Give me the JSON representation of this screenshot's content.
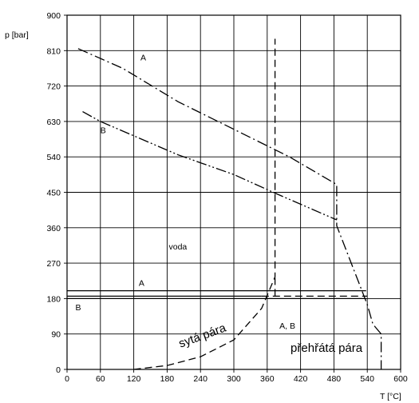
{
  "chart_data": {
    "type": "line",
    "xlabel": "T [°C]",
    "ylabel": "p [bar]",
    "xlim": [
      0,
      600
    ],
    "ylim": [
      0,
      900
    ],
    "xticks": [
      0,
      60,
      120,
      180,
      240,
      300,
      360,
      420,
      480,
      540,
      600
    ],
    "yticks": [
      0,
      90,
      180,
      270,
      360,
      450,
      540,
      630,
      720,
      810,
      900
    ],
    "grid": true,
    "series": [
      {
        "name": "A",
        "style": "dash-dot",
        "points": [
          [
            20,
            815
          ],
          [
            100,
            765
          ],
          [
            200,
            680
          ],
          [
            300,
            610
          ],
          [
            400,
            540
          ],
          [
            485,
            470
          ],
          [
            485,
            365
          ],
          [
            540,
            165
          ],
          [
            550,
            115
          ],
          [
            565,
            90
          ],
          [
            565,
            0
          ]
        ]
      },
      {
        "name": "B",
        "style": "dash-dot-dot",
        "points": [
          [
            28,
            655
          ],
          [
            60,
            630
          ],
          [
            200,
            545
          ],
          [
            300,
            495
          ],
          [
            374,
            448
          ],
          [
            485,
            380
          ]
        ]
      },
      {
        "style": "dashed",
        "points": [
          [
            120,
            0
          ],
          [
            180,
            10
          ],
          [
            240,
            32
          ],
          [
            300,
            75
          ],
          [
            350,
            155
          ],
          [
            374,
            235
          ],
          [
            374,
            840
          ]
        ]
      },
      {
        "name": "A",
        "style": "solid",
        "points": [
          [
            0,
            200
          ],
          [
            538,
            200
          ]
        ]
      },
      {
        "name": "B",
        "style": "solid",
        "points": [
          [
            0,
            180
          ],
          [
            538,
            180
          ]
        ]
      },
      {
        "name": "A",
        "style": "solid",
        "points": [
          [
            0,
            186
          ],
          [
            350,
            186
          ]
        ]
      },
      {
        "style": "dashed",
        "points": [
          [
            350,
            186
          ],
          [
            540,
            186
          ]
        ]
      },
      {
        "style": "dashed",
        "points": [
          [
            374,
            186
          ],
          [
            374,
            235
          ]
        ]
      }
    ],
    "annotations": [
      {
        "text": "A",
        "x": 132,
        "y": 785
      },
      {
        "text": "B",
        "x": 60,
        "y": 600
      },
      {
        "text": "A",
        "x": 129,
        "y": 212
      },
      {
        "text": "B",
        "x": 15,
        "y": 150
      },
      {
        "text": "A, B",
        "x": 382,
        "y": 104
      },
      {
        "text": "voda",
        "x": 183,
        "y": 305
      },
      {
        "text": "sytá pára",
        "x": 204,
        "y": 55,
        "rotate": -20
      },
      {
        "text": "přehřátá pára",
        "x": 402,
        "y": 45
      }
    ]
  }
}
